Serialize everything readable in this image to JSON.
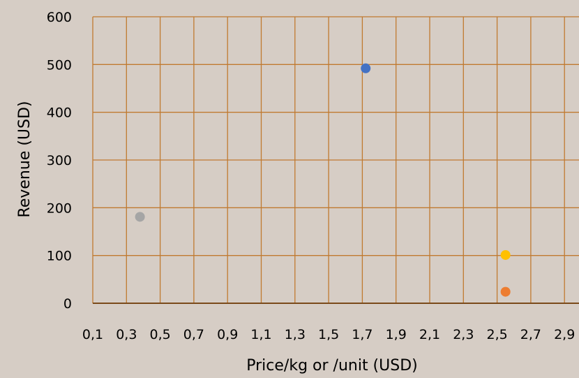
{
  "chart_data": {
    "type": "scatter",
    "title": "",
    "xlabel": "Price/kg or /unit (USD)",
    "ylabel": "Revenue (USD)",
    "x_tick_labels": [
      "0,1",
      "0,3",
      "0,5",
      "0,7",
      "0,9",
      "1,1",
      "1,3",
      "1,5",
      "1,7",
      "1,9",
      "2,1",
      "2,3",
      "2,5",
      "2,7",
      "2,9"
    ],
    "y_tick_labels": [
      "0",
      "100",
      "200",
      "300",
      "400",
      "500",
      "600"
    ],
    "xlim": [
      0.0,
      3.0
    ],
    "ylim": [
      0,
      600
    ],
    "grid": true,
    "legend": "none",
    "colors": {
      "background": "#d6cdc5",
      "grid": "#c07a30",
      "axis": "#7a4a1a"
    },
    "points": [
      {
        "x": 1.72,
        "y": 492,
        "color": "#4472c4"
      },
      {
        "x": 0.38,
        "y": 181,
        "color": "#a5a5a5"
      },
      {
        "x": 2.55,
        "y": 101,
        "color": "#ffc000"
      },
      {
        "x": 2.55,
        "y": 24,
        "color": "#ed7d31"
      }
    ]
  }
}
